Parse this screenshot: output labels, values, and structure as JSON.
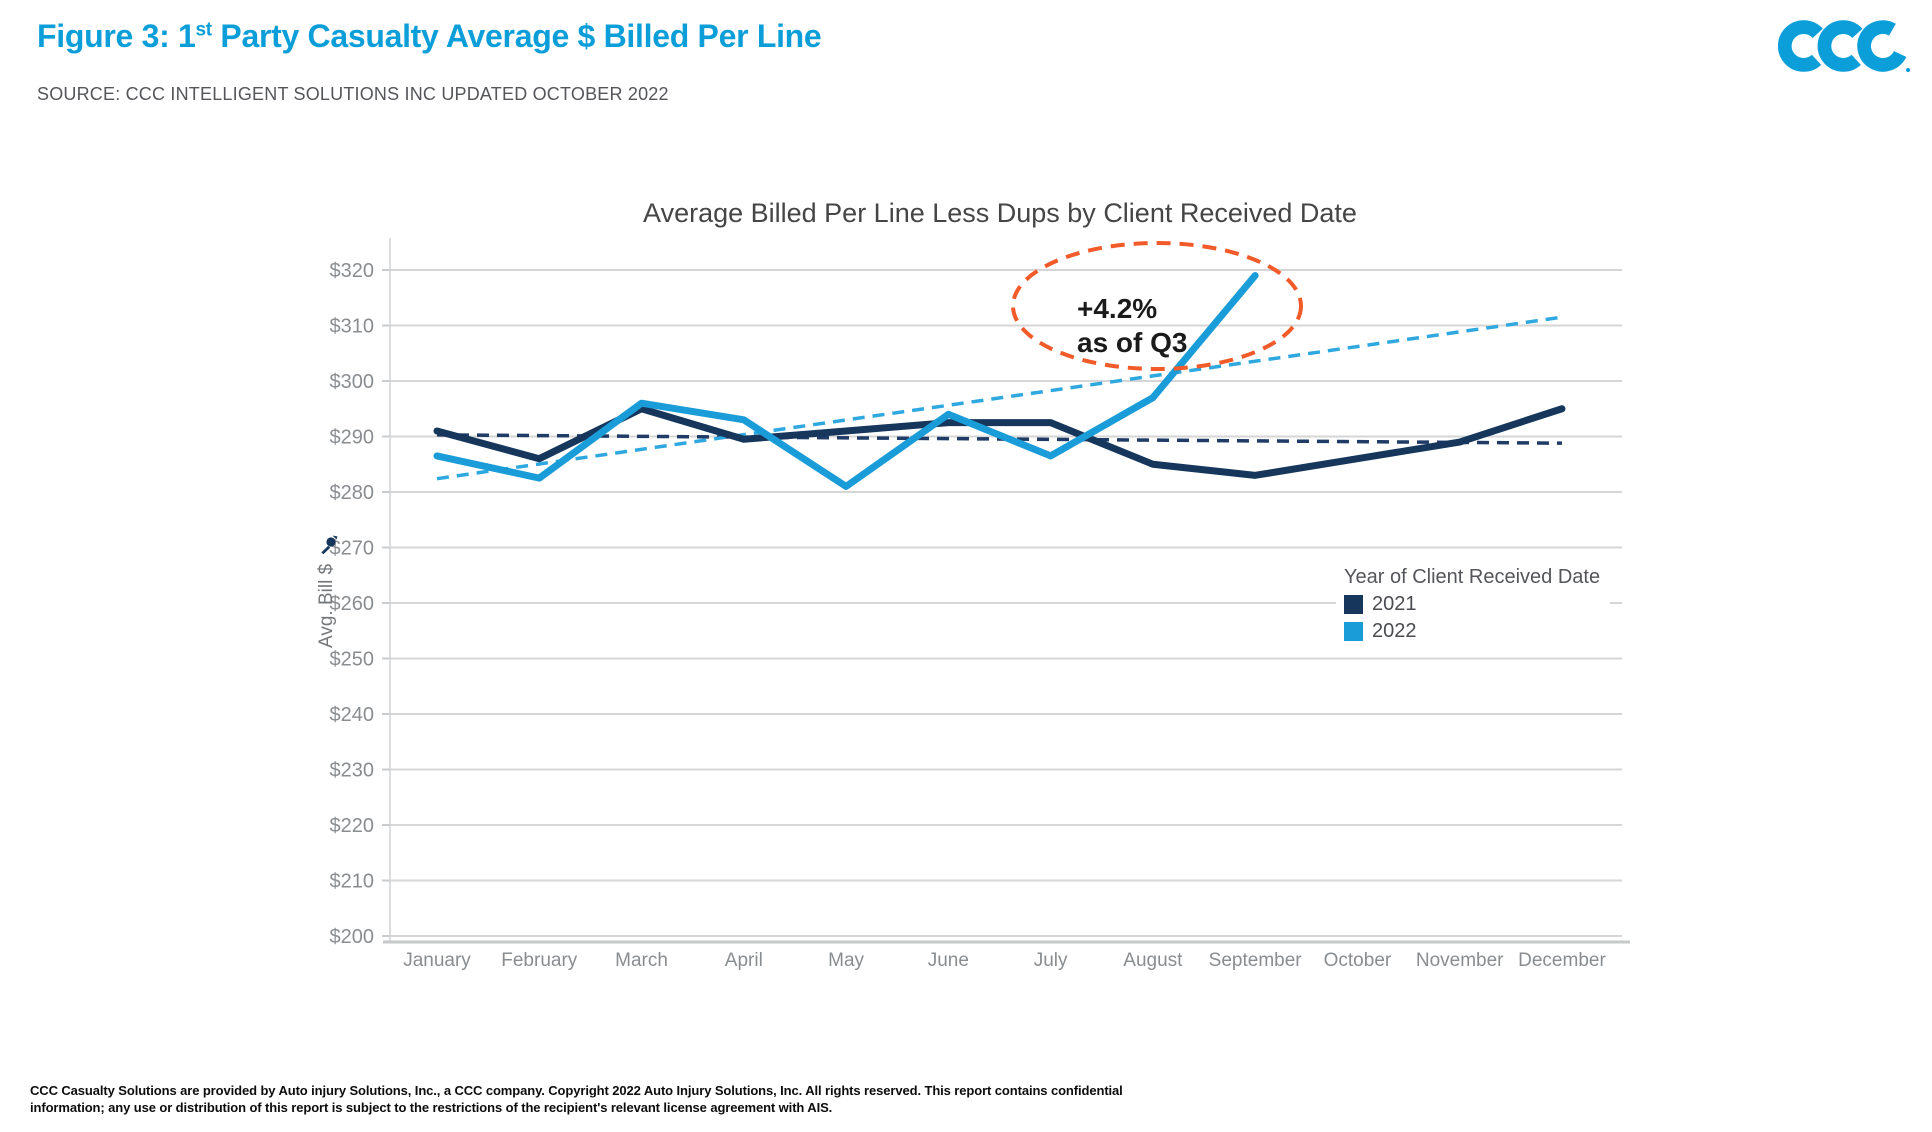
{
  "header": {
    "title_prefix": "Figure 3: 1",
    "title_sup": "st",
    "title_rest": " Party Casualty Average $ Billed Per Line",
    "source": "SOURCE: CCC INTELLIGENT SOLUTIONS INC UPDATED OCTOBER 2022",
    "logo_text": "CCC"
  },
  "chart_data": {
    "type": "line",
    "title": "Average Billed Per Line Less Dups by Client Received Date",
    "ylabel": "Avg. Bill $",
    "xlabel": "",
    "categories": [
      "January",
      "February",
      "March",
      "April",
      "May",
      "June",
      "July",
      "August",
      "September",
      "October",
      "November",
      "December"
    ],
    "y_ticks": [
      "$320",
      "$310",
      "$300",
      "$290",
      "$280",
      "$270",
      "$260",
      "$250",
      "$240",
      "$230",
      "$220",
      "$210",
      "$200"
    ],
    "ylim": [
      200,
      320
    ],
    "grid": true,
    "legend": {
      "title": "Year of Client Received Date",
      "position": "middle-right"
    },
    "series": [
      {
        "name": "2021",
        "color": "#16365c",
        "values": [
          291,
          286,
          295,
          289.5,
          291,
          292.5,
          292.5,
          285,
          283,
          286,
          289,
          295
        ]
      },
      {
        "name": "2022",
        "color": "#1a9cd8",
        "values": [
          286.5,
          282.5,
          296,
          293,
          281,
          294,
          286.5,
          297,
          319,
          null,
          null,
          null
        ]
      }
    ],
    "trendlines": [
      {
        "series": "2021",
        "color": "#1f3b66",
        "start_value": 290.3,
        "end_value": 288.8
      },
      {
        "series": "2022",
        "color": "#2fa8e0",
        "start_value": 282.4,
        "end_value": 311.5
      }
    ],
    "annotation": {
      "line1": "+4.2%",
      "line2": "as of Q3",
      "ellipse_color": "#f15a29"
    }
  },
  "footer": {
    "line1": "CCC Casualty Solutions are provided by Auto injury Solutions, Inc., a CCC company. Copyright 2022 Auto Injury Solutions, Inc. All rights reserved. This report contains confidential",
    "line2": "information; any use or distribution of this report is subject to the restrictions of the recipient's relevant license agreement with AIS."
  },
  "colors": {
    "brand_blue": "#0c9ed9",
    "navy_2021": "#16365c",
    "cyan_2022": "#1a9cd8",
    "annotation_orange": "#f15a29",
    "gridline": "#d6d6d6"
  }
}
